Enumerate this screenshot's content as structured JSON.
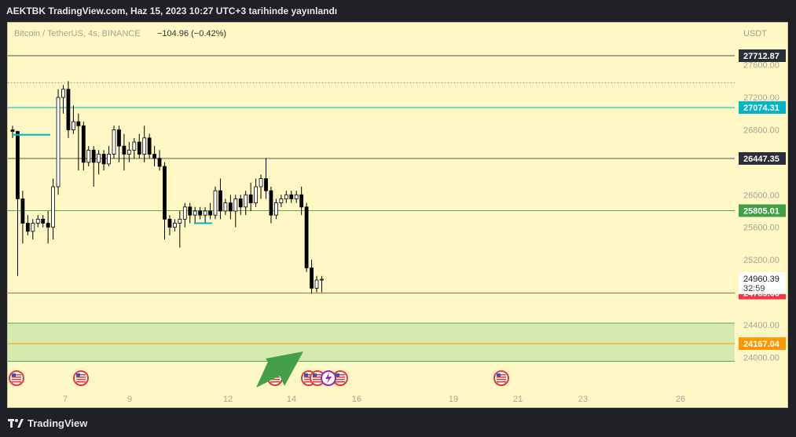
{
  "header": {
    "title": "AEKTBK TradingView.com, Haz 15, 2023 10:27 UTC+3 tarihinde yayınlandı"
  },
  "footer": {
    "brand": "TradingView"
  },
  "colors": {
    "background": "#fff8c4",
    "candle_up_fill": "#ffffff",
    "candle_down_fill": "#000000",
    "resistance_cyan": "#00b5c8",
    "support_green": "#4caf50",
    "orange_level": "#ff9800",
    "red_level": "#f23645",
    "zone_fill": "#d6eab0"
  },
  "chart_data": {
    "type": "candlestick",
    "symbol_line": "Bitcoin / TetherUS, 4s, BINANCE",
    "change_text": "−104.96 (−0.42%)",
    "currency": "USDT",
    "y_range": [
      23900,
      27950
    ],
    "y_ticks": [
      "27600.00",
      "27200.00",
      "26800.00",
      "26000.00",
      "25600.00",
      "25200.00",
      "24400.00",
      "24000.00"
    ],
    "x_ticks": [
      "7",
      "9",
      "12",
      "14",
      "16",
      "19",
      "21",
      "23",
      "26"
    ],
    "levels": [
      {
        "label": "27712.87",
        "value": 27712.87,
        "color": "#2a2e39",
        "line_color": "#555555",
        "style": "solid"
      },
      {
        "label": "27074.31",
        "value": 27074.31,
        "color": "#00b5c8",
        "line_color": "#00b5c8",
        "style": "solid"
      },
      {
        "label": "26447.35",
        "value": 26447.35,
        "color": "#2a2e39",
        "line_color": "#555555",
        "style": "solid"
      },
      {
        "label": "25805.01",
        "value": 25805.01,
        "color": "#43a047",
        "line_color": "#4caf50",
        "style": "solid"
      },
      {
        "label": "24789.66",
        "value": 24789.66,
        "color": "#f23645",
        "line_color": "#c0605a",
        "style": "solid"
      },
      {
        "label": "24167.04",
        "value": 24167.04,
        "color": "#ff9800",
        "line_color": "#ff9800",
        "style": "solid"
      }
    ],
    "dotted_level": 27380,
    "current_price": {
      "label": "24960.39",
      "countdown": "32:59",
      "value": 24960.39
    },
    "zone": {
      "top": 24420,
      "bottom": 23950
    },
    "candles": [
      [
        26800,
        26850,
        26700,
        26780
      ],
      [
        26780,
        26790,
        25000,
        25950
      ],
      [
        25950,
        26050,
        25400,
        25650
      ],
      [
        25650,
        25750,
        25500,
        25550
      ],
      [
        25550,
        25700,
        25450,
        25650
      ],
      [
        25650,
        25750,
        25600,
        25700
      ],
      [
        25700,
        25750,
        25600,
        25650
      ],
      [
        25650,
        25800,
        25400,
        25600
      ],
      [
        25600,
        26200,
        25450,
        26100
      ],
      [
        26100,
        27300,
        26000,
        27200
      ],
      [
        27200,
        27350,
        27000,
        27300
      ],
      [
        27300,
        27400,
        26700,
        26800
      ],
      [
        26800,
        27100,
        26750,
        26900
      ],
      [
        26900,
        27000,
        26300,
        26850
      ],
      [
        26850,
        26900,
        26300,
        26400
      ],
      [
        26400,
        26600,
        26350,
        26550
      ],
      [
        26550,
        26600,
        26100,
        26400
      ],
      [
        26400,
        26550,
        26250,
        26500
      ],
      [
        26500,
        26550,
        26300,
        26380
      ],
      [
        26380,
        26600,
        26350,
        26500
      ],
      [
        26500,
        26850,
        26450,
        26800
      ],
      [
        26800,
        26850,
        26400,
        26600
      ],
      [
        26600,
        26750,
        26300,
        26500
      ],
      [
        26500,
        26650,
        26400,
        26550
      ],
      [
        26550,
        26700,
        26450,
        26650
      ],
      [
        26650,
        26750,
        26450,
        26500
      ],
      [
        26500,
        26850,
        26400,
        26700
      ],
      [
        26700,
        26750,
        26450,
        26500
      ],
      [
        26500,
        26600,
        26350,
        26450
      ],
      [
        26450,
        26550,
        26300,
        26350
      ],
      [
        26350,
        26400,
        25450,
        25700
      ],
      [
        25700,
        25750,
        25500,
        25600
      ],
      [
        25600,
        25700,
        25550,
        25650
      ],
      [
        25650,
        25800,
        25350,
        25700
      ],
      [
        25700,
        25900,
        25600,
        25850
      ],
      [
        25850,
        25900,
        25650,
        25750
      ],
      [
        25750,
        25850,
        25650,
        25800
      ],
      [
        25800,
        25850,
        25700,
        25750
      ],
      [
        25750,
        25850,
        25650,
        25800
      ],
      [
        25800,
        25900,
        25700,
        25750
      ],
      [
        25750,
        26100,
        25700,
        26050
      ],
      [
        26050,
        26200,
        25700,
        25800
      ],
      [
        25800,
        25950,
        25750,
        25900
      ],
      [
        25900,
        26000,
        25700,
        25800
      ],
      [
        25800,
        26000,
        25600,
        25950
      ],
      [
        25950,
        26000,
        25750,
        25850
      ],
      [
        25850,
        26050,
        25750,
        26000
      ],
      [
        26000,
        26150,
        25800,
        25900
      ],
      [
        25900,
        26200,
        25850,
        26100
      ],
      [
        26100,
        26250,
        25950,
        26200
      ],
      [
        26200,
        26450,
        25950,
        26050
      ],
      [
        26050,
        26100,
        25650,
        25750
      ],
      [
        25750,
        25950,
        25700,
        25900
      ],
      [
        25900,
        26000,
        25850,
        25950
      ],
      [
        25950,
        26050,
        25900,
        26000
      ],
      [
        26000,
        26050,
        25900,
        25950
      ],
      [
        25950,
        26050,
        25900,
        26000
      ],
      [
        26000,
        26100,
        25750,
        25850
      ],
      [
        25850,
        25900,
        25050,
        25100
      ],
      [
        25100,
        25200,
        24780,
        24850
      ],
      [
        24850,
        25000,
        24800,
        24950
      ],
      [
        24950,
        25000,
        24800,
        24960
      ]
    ]
  },
  "annotations": {
    "arrow_color": "#43a047",
    "event_flags": [
      "us-flag",
      "us-flag",
      "us-flag",
      "us-flag",
      "us-flag",
      "us-flag",
      "us-flag"
    ]
  }
}
